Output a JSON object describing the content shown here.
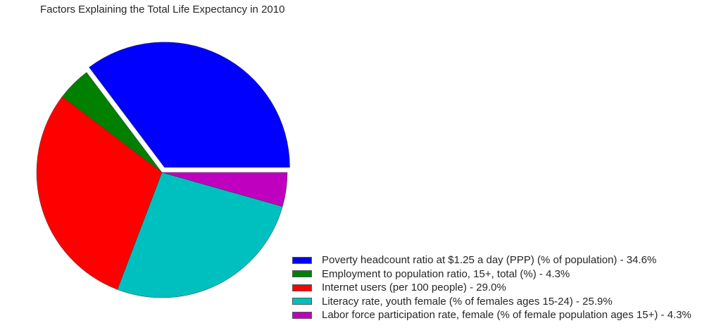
{
  "chart_data": {
    "type": "pie",
    "title": "Factors Explaining the Total Life Expectancy in 2010",
    "legend_position": "bottom-right",
    "slices": [
      {
        "label": "Poverty headcount ratio at $1.25 a day (PPP) (% of population) - 34.6%",
        "value": 34.6,
        "color": "#0000ff",
        "exploded": true
      },
      {
        "label": "Employment to population ratio, 15+, total (%)  - 4.3%",
        "value": 4.3,
        "color": "#008000",
        "exploded": false
      },
      {
        "label": "Internet users (per 100 people) - 29.0%",
        "value": 29.0,
        "color": "#ff0000",
        "exploded": false
      },
      {
        "label": "Literacy rate, youth female (% of females ages 15-24) - 25.9%",
        "value": 25.9,
        "color": "#00bfbf",
        "exploded": false
      },
      {
        "label": "Labor force participation rate, female (% of female population ages 15+)  - 4.3%",
        "value": 4.3,
        "color": "#bf00bf",
        "exploded": false
      }
    ]
  }
}
